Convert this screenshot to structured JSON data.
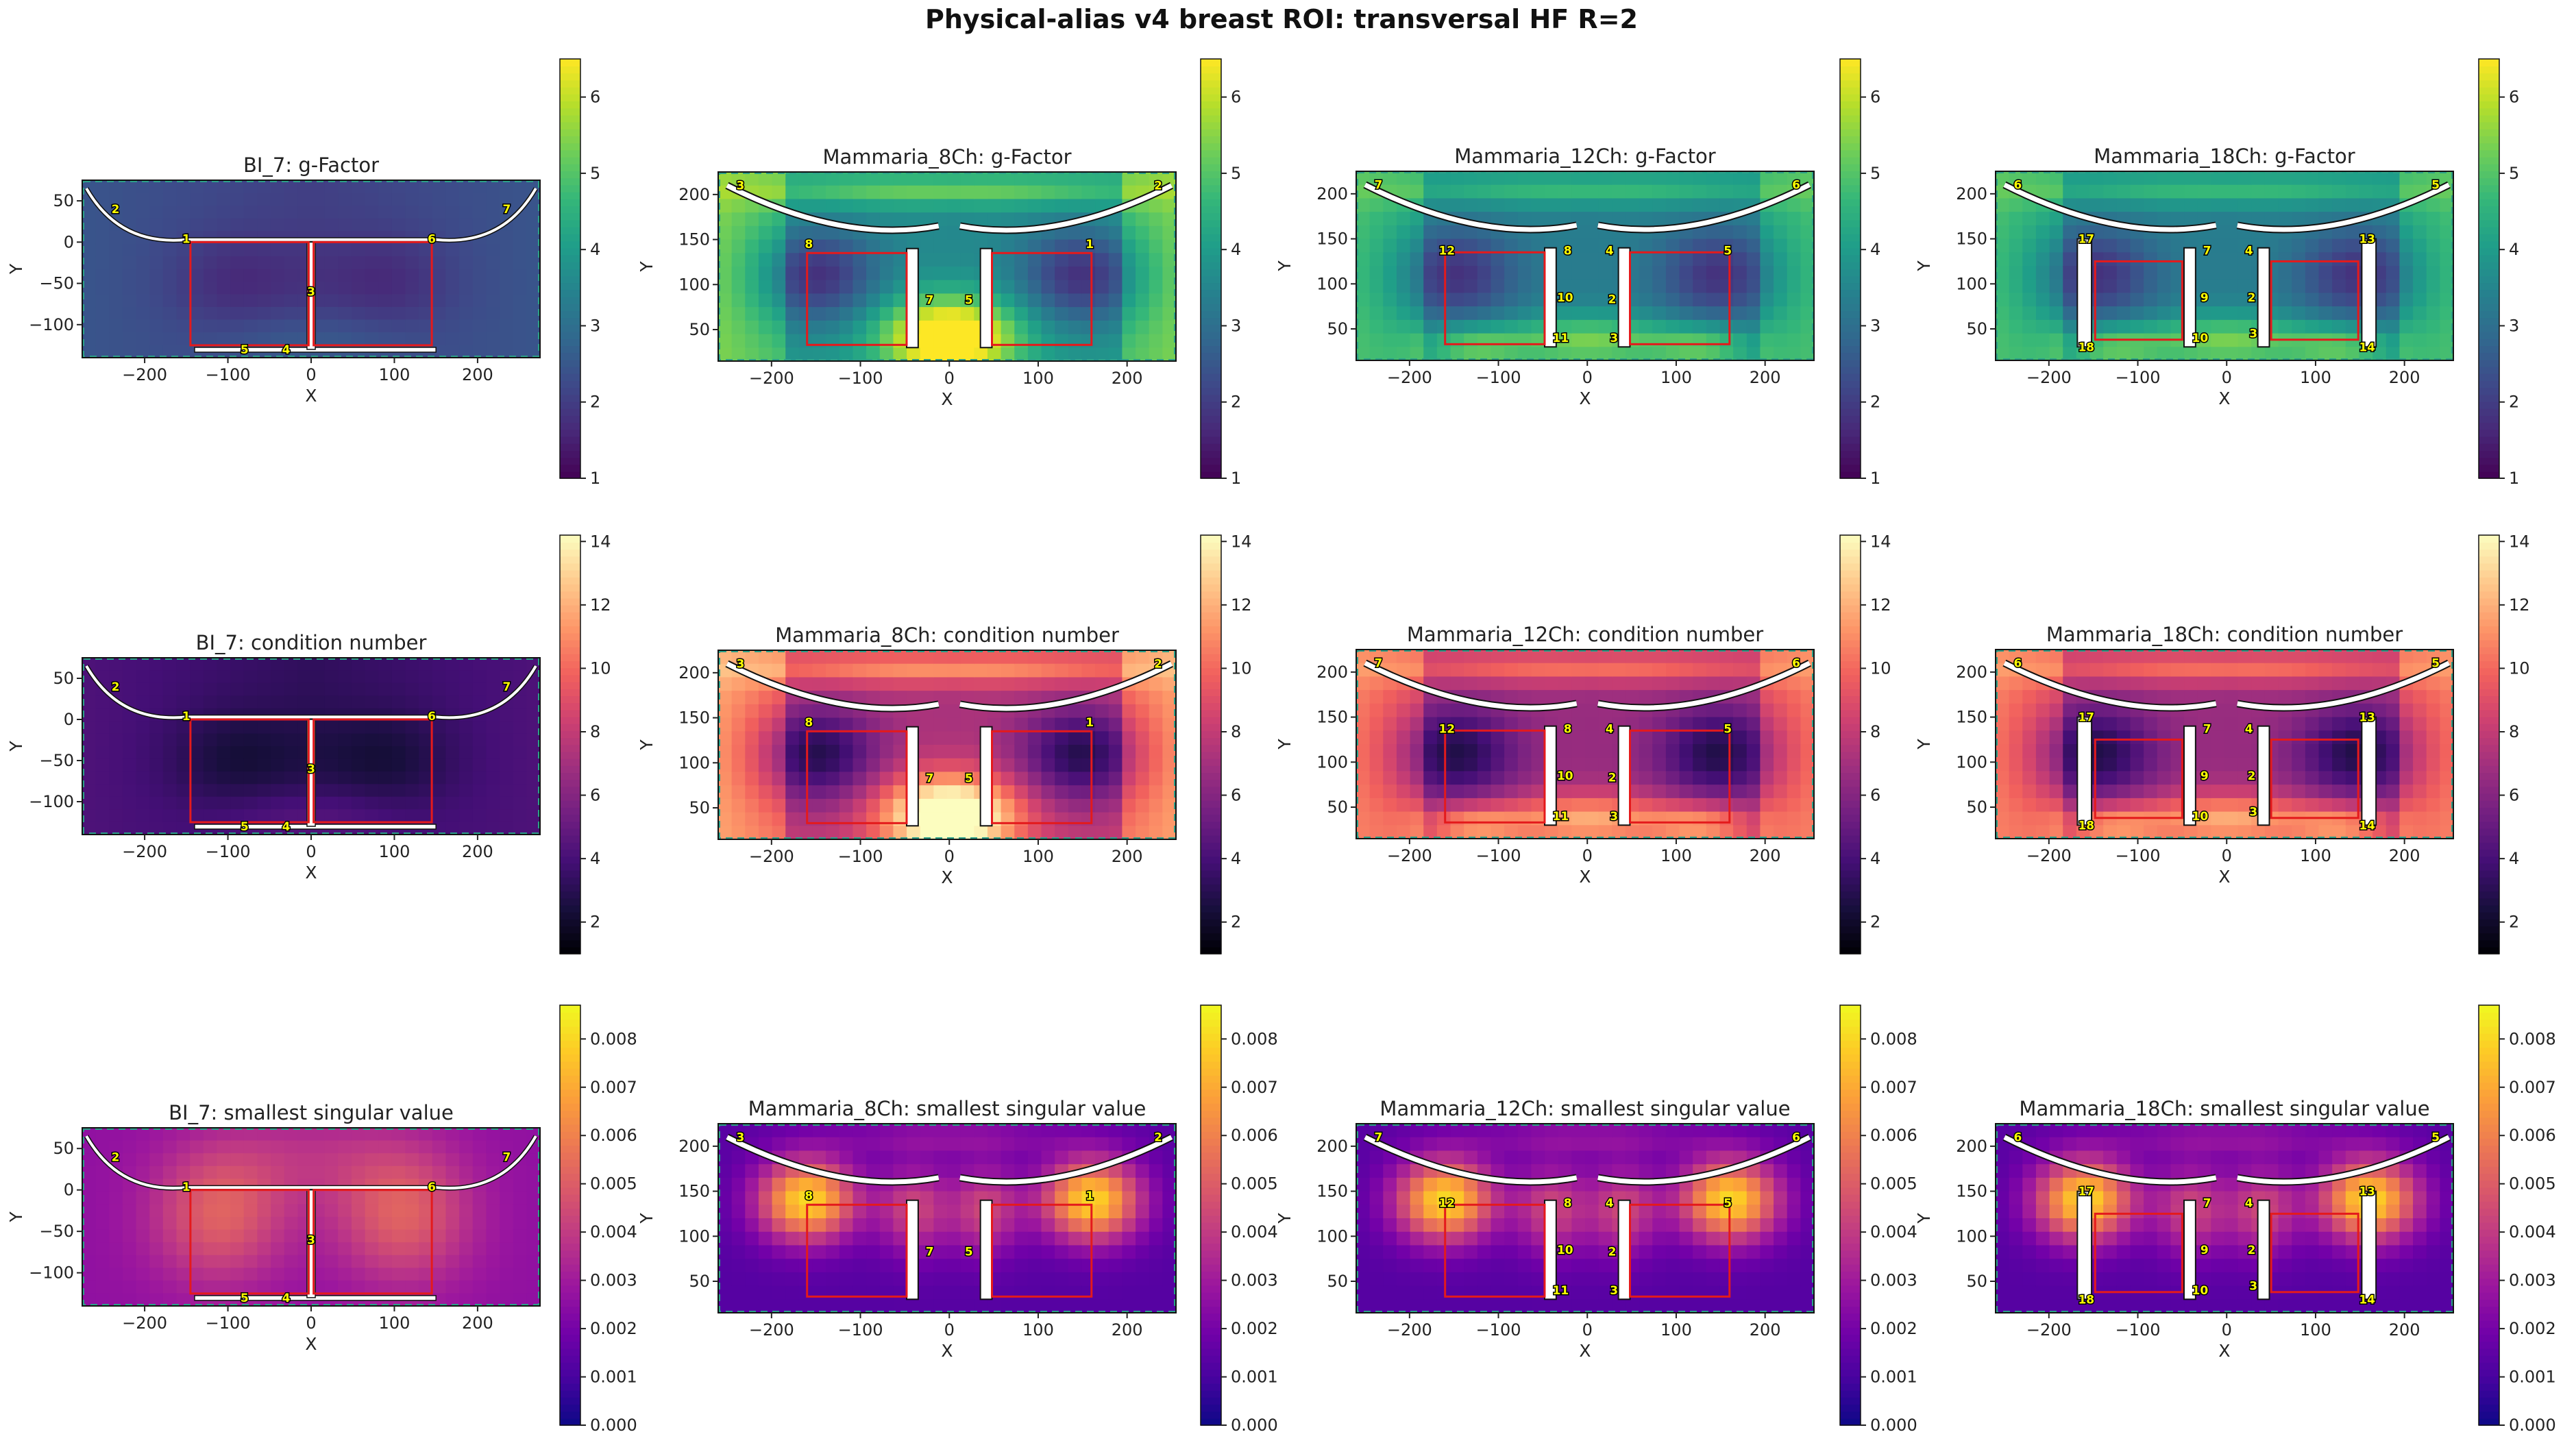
{
  "figure": {
    "title": "Physical-alias v4 breast ROI: transversal HF R=2"
  },
  "metric_titles": [
    "g-Factor",
    "condition number",
    "smallest singular value"
  ],
  "colormaps": {
    "viridis": [
      "#440154",
      "#482878",
      "#3e4989",
      "#31688e",
      "#26828e",
      "#1f9e89",
      "#35b779",
      "#6ece58",
      "#b5de2b",
      "#fde725"
    ],
    "magma": [
      "#000004",
      "#180f3d",
      "#440f76",
      "#721f81",
      "#9e2f7f",
      "#cd4071",
      "#f1605d",
      "#fd9668",
      "#feca8d",
      "#fcfdbf"
    ],
    "plasma": [
      "#0d0887",
      "#46039f",
      "#7201a8",
      "#9c179e",
      "#bd3786",
      "#d8576b",
      "#ed7953",
      "#fb9f3a",
      "#fdca26",
      "#f0f921"
    ]
  },
  "colors": {
    "roi_box": "#e41a1c",
    "coil_label_bg": "#ffff00",
    "fov_border": "#2ca089",
    "coil_outline": "#ffffff"
  },
  "chart_data": [
    {
      "type": "heatmap",
      "panel": "BI_7: g-Factor",
      "title": "BI_7: g-Factor",
      "xlabel": "X",
      "ylabel": "Y",
      "xlim": [
        -275,
        275
      ],
      "ylim": [
        -140,
        75
      ],
      "xticks": [
        -200,
        -100,
        0,
        100,
        200
      ],
      "yticks": [
        -100,
        -50,
        0,
        50
      ],
      "colormap": "viridis",
      "colorbar": {
        "min": 1,
        "max": 6.5,
        "ticks": [
          1,
          2,
          3,
          4,
          5,
          6
        ]
      },
      "value_range": [
        1.3,
        3.4
      ],
      "coil_labels": [
        "1",
        "2",
        "3",
        "4",
        "5",
        "6",
        "7"
      ]
    },
    {
      "type": "heatmap",
      "panel": "Mammaria_8Ch: g-Factor",
      "title": "Mammaria_8Ch: g-Factor",
      "xlabel": "X",
      "ylabel": "Y",
      "xlim": [
        -260,
        255
      ],
      "ylim": [
        15,
        225
      ],
      "xticks": [
        -200,
        -100,
        0,
        100,
        200
      ],
      "yticks": [
        50,
        100,
        150,
        200
      ],
      "colormap": "viridis",
      "colorbar": {
        "min": 1,
        "max": 6.5,
        "ticks": [
          1,
          2,
          3,
          4,
          5,
          6
        ]
      },
      "value_range": [
        1.2,
        6.5
      ],
      "coil_labels": [
        "1",
        "2",
        "3",
        "5",
        "7",
        "8"
      ]
    },
    {
      "type": "heatmap",
      "panel": "Mammaria_12Ch: g-Factor",
      "title": "Mammaria_12Ch: g-Factor",
      "xlabel": "X",
      "ylabel": "Y",
      "xlim": [
        -260,
        255
      ],
      "ylim": [
        15,
        225
      ],
      "xticks": [
        -200,
        -100,
        0,
        100,
        200
      ],
      "yticks": [
        50,
        100,
        150,
        200
      ],
      "colormap": "viridis",
      "colorbar": {
        "min": 1,
        "max": 6.5,
        "ticks": [
          1,
          2,
          3,
          4,
          5,
          6
        ]
      },
      "value_range": [
        1.3,
        5.8
      ],
      "coil_labels": [
        "2",
        "3",
        "4",
        "5",
        "6",
        "7",
        "8",
        "10",
        "11",
        "12"
      ]
    },
    {
      "type": "heatmap",
      "panel": "Mammaria_18Ch: g-Factor",
      "title": "Mammaria_18Ch: g-Factor",
      "xlabel": "X",
      "ylabel": "Y",
      "xlim": [
        -260,
        255
      ],
      "ylim": [
        15,
        225
      ],
      "xticks": [
        -200,
        -100,
        0,
        100,
        200
      ],
      "yticks": [
        50,
        100,
        150,
        200
      ],
      "colormap": "viridis",
      "colorbar": {
        "min": 1,
        "max": 6.5,
        "ticks": [
          1,
          2,
          3,
          4,
          5,
          6
        ]
      },
      "value_range": [
        1.3,
        5.8
      ],
      "coil_labels": [
        "2",
        "3",
        "4",
        "5",
        "6",
        "7",
        "9",
        "10",
        "13",
        "14",
        "17",
        "18"
      ]
    },
    {
      "type": "heatmap",
      "panel": "BI_7: condition number",
      "title": "BI_7: condition number",
      "xlabel": "X",
      "ylabel": "Y",
      "xlim": [
        -275,
        275
      ],
      "ylim": [
        -140,
        75
      ],
      "xticks": [
        -200,
        -100,
        0,
        100,
        200
      ],
      "yticks": [
        -100,
        -50,
        0,
        50
      ],
      "colormap": "magma",
      "colorbar": {
        "min": 1,
        "max": 14.2,
        "ticks": [
          2,
          4,
          6,
          8,
          10,
          12,
          14
        ]
      },
      "value_range": [
        1.5,
        6.5
      ],
      "coil_labels": [
        "1",
        "2",
        "3",
        "4",
        "5",
        "6",
        "7"
      ]
    },
    {
      "type": "heatmap",
      "panel": "Mammaria_8Ch: condition number",
      "title": "Mammaria_8Ch: condition number",
      "xlabel": "X",
      "ylabel": "Y",
      "xlim": [
        -260,
        255
      ],
      "ylim": [
        15,
        225
      ],
      "xticks": [
        -200,
        -100,
        0,
        100,
        200
      ],
      "yticks": [
        50,
        100,
        150,
        200
      ],
      "colormap": "magma",
      "colorbar": {
        "min": 1,
        "max": 14.2,
        "ticks": [
          2,
          4,
          6,
          8,
          10,
          12,
          14
        ]
      },
      "value_range": [
        1.5,
        14.2
      ],
      "coil_labels": [
        "1",
        "2",
        "3",
        "5",
        "7",
        "8"
      ]
    },
    {
      "type": "heatmap",
      "panel": "Mammaria_12Ch: condition number",
      "title": "Mammaria_12Ch: condition number",
      "xlabel": "X",
      "ylabel": "Y",
      "xlim": [
        -260,
        255
      ],
      "ylim": [
        15,
        225
      ],
      "xticks": [
        -200,
        -100,
        0,
        100,
        200
      ],
      "yticks": [
        50,
        100,
        150,
        200
      ],
      "colormap": "magma",
      "colorbar": {
        "min": 1,
        "max": 14.2,
        "ticks": [
          2,
          4,
          6,
          8,
          10,
          12,
          14
        ]
      },
      "value_range": [
        1.5,
        13.0
      ],
      "coil_labels": [
        "2",
        "3",
        "4",
        "5",
        "6",
        "7",
        "8",
        "10",
        "11",
        "12"
      ]
    },
    {
      "type": "heatmap",
      "panel": "Mammaria_18Ch: condition number",
      "title": "Mammaria_18Ch: condition number",
      "xlabel": "X",
      "ylabel": "Y",
      "xlim": [
        -260,
        255
      ],
      "ylim": [
        15,
        225
      ],
      "xticks": [
        -200,
        -100,
        0,
        100,
        200
      ],
      "yticks": [
        50,
        100,
        150,
        200
      ],
      "colormap": "magma",
      "colorbar": {
        "min": 1,
        "max": 14.2,
        "ticks": [
          2,
          4,
          6,
          8,
          10,
          12,
          14
        ]
      },
      "value_range": [
        1.5,
        13.0
      ],
      "coil_labels": [
        "2",
        "3",
        "4",
        "5",
        "6",
        "7",
        "9",
        "10",
        "13",
        "14",
        "17",
        "18"
      ]
    },
    {
      "type": "heatmap",
      "panel": "BI_7: smallest singular value",
      "title": "BI_7: smallest singular value",
      "xlabel": "X",
      "ylabel": "Y",
      "xlim": [
        -275,
        275
      ],
      "ylim": [
        -140,
        75
      ],
      "xticks": [
        -200,
        -100,
        0,
        100,
        200
      ],
      "yticks": [
        -100,
        -50,
        0,
        50
      ],
      "colormap": "plasma",
      "colorbar": {
        "min": 0,
        "max": 0.0087,
        "ticks": [
          "0.000",
          "0.001",
          "0.002",
          "0.003",
          "0.004",
          "0.005",
          "0.006",
          "0.007",
          "0.008"
        ]
      },
      "value_range": [
        0.0015,
        0.006
      ],
      "coil_labels": [
        "1",
        "2",
        "3",
        "4",
        "5",
        "6",
        "7"
      ]
    },
    {
      "type": "heatmap",
      "panel": "Mammaria_8Ch: smallest singular value",
      "title": "Mammaria_8Ch: smallest singular value",
      "xlabel": "X",
      "ylabel": "Y",
      "xlim": [
        -260,
        255
      ],
      "ylim": [
        15,
        225
      ],
      "xticks": [
        -200,
        -100,
        0,
        100,
        200
      ],
      "yticks": [
        50,
        100,
        150,
        200
      ],
      "colormap": "plasma",
      "colorbar": {
        "min": 0,
        "max": 0.0087,
        "ticks": [
          "0.000",
          "0.001",
          "0.002",
          "0.003",
          "0.004",
          "0.005",
          "0.006",
          "0.007",
          "0.008"
        ]
      },
      "value_range": [
        0.0003,
        0.0087
      ],
      "coil_labels": [
        "1",
        "2",
        "3",
        "5",
        "7",
        "8"
      ]
    },
    {
      "type": "heatmap",
      "panel": "Mammaria_12Ch: smallest singular value",
      "title": "Mammaria_12Ch: smallest singular value",
      "xlabel": "X",
      "ylabel": "Y",
      "xlim": [
        -260,
        255
      ],
      "ylim": [
        15,
        225
      ],
      "xticks": [
        -200,
        -100,
        0,
        100,
        200
      ],
      "yticks": [
        50,
        100,
        150,
        200
      ],
      "colormap": "plasma",
      "colorbar": {
        "min": 0,
        "max": 0.0087,
        "ticks": [
          "0.000",
          "0.001",
          "0.002",
          "0.003",
          "0.004",
          "0.005",
          "0.006",
          "0.007",
          "0.008"
        ]
      },
      "value_range": [
        0.0003,
        0.0087
      ],
      "coil_labels": [
        "2",
        "3",
        "4",
        "5",
        "6",
        "7",
        "8",
        "10",
        "11",
        "12"
      ]
    },
    {
      "type": "heatmap",
      "panel": "Mammaria_18Ch: smallest singular value",
      "title": "Mammaria_18Ch: smallest singular value",
      "xlabel": "X",
      "ylabel": "Y",
      "xlim": [
        -260,
        255
      ],
      "ylim": [
        15,
        225
      ],
      "xticks": [
        -200,
        -100,
        0,
        100,
        200
      ],
      "yticks": [
        50,
        100,
        150,
        200
      ],
      "colormap": "plasma",
      "colorbar": {
        "min": 0,
        "max": 0.0087,
        "ticks": [
          "0.000",
          "0.001",
          "0.002",
          "0.003",
          "0.004",
          "0.005",
          "0.006",
          "0.007",
          "0.008"
        ]
      },
      "value_range": [
        0.0003,
        0.0087
      ],
      "coil_labels": [
        "2",
        "3",
        "4",
        "5",
        "6",
        "7",
        "9",
        "10",
        "13",
        "14",
        "17",
        "18"
      ]
    }
  ]
}
